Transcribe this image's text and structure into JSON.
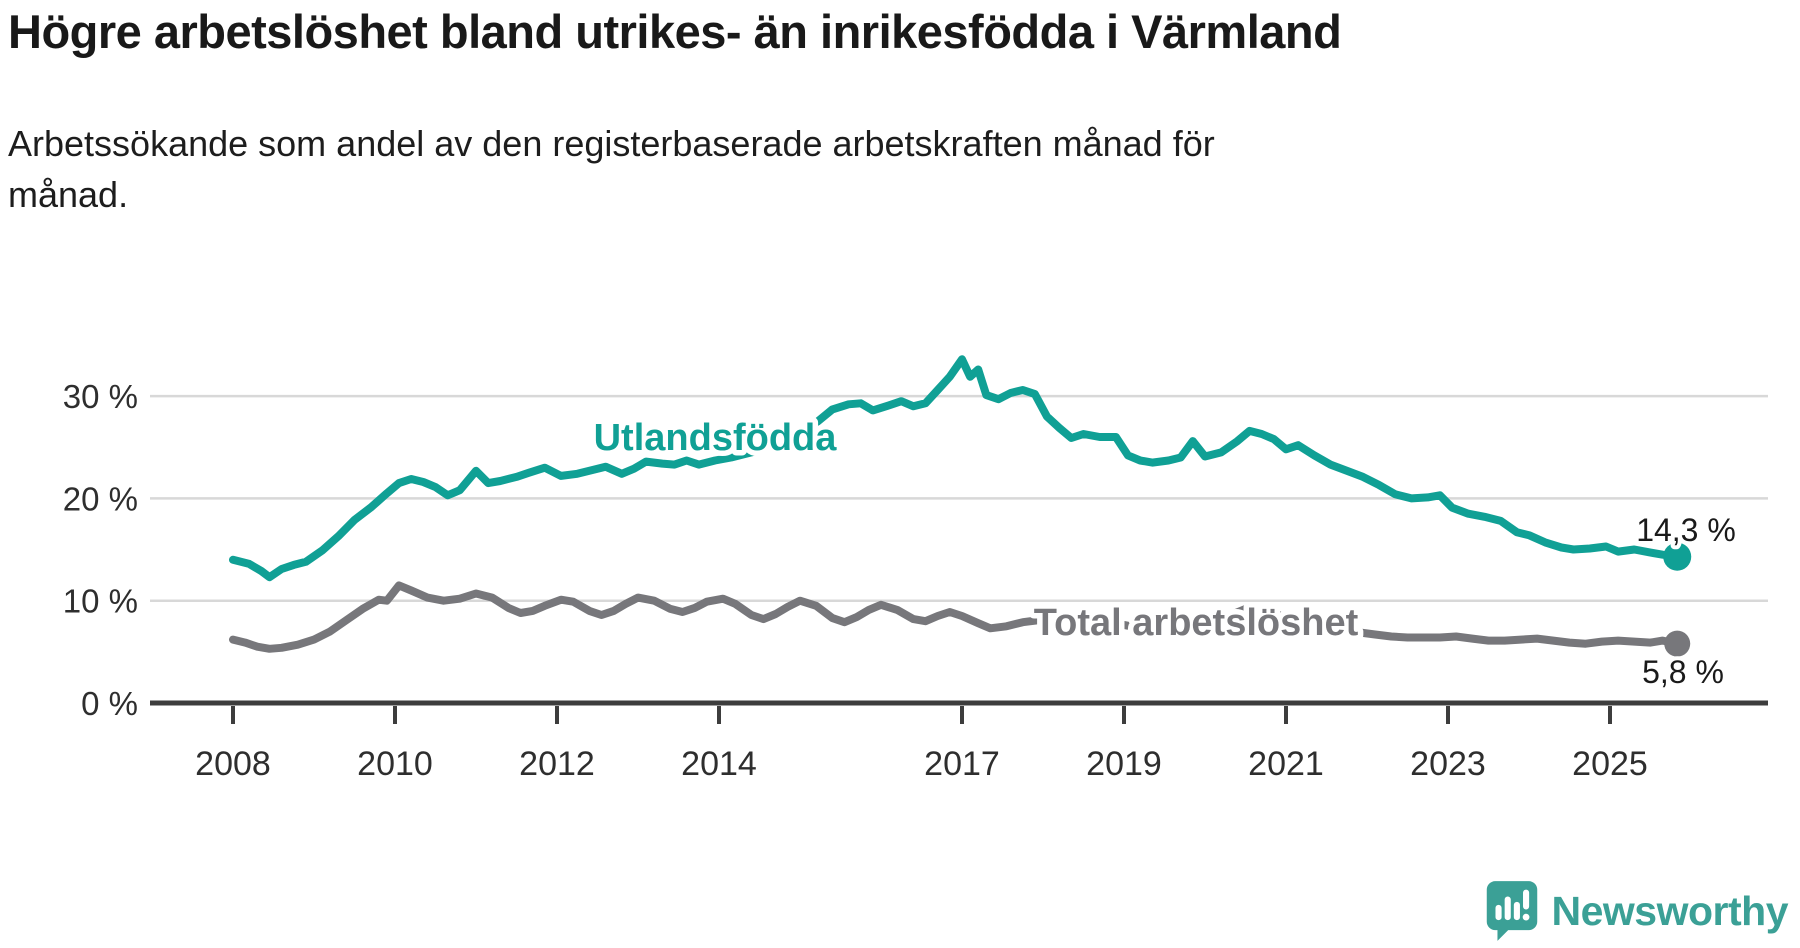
{
  "header": {
    "title": "Högre arbetslöshet bland utrikes- än inrikesfödda i Värmland",
    "subtitle_lines": [
      "Arbetssökande som andel av den registerbaserade arbetskraften månad för",
      "månad."
    ]
  },
  "footer": {
    "logo_text": "Newsworthy"
  },
  "colors": {
    "accent_teal": "#10a095",
    "series_gray": "#77777b",
    "gridline": "#d8d8d8",
    "axis": "#3d3d3d",
    "tick_text": "#2e2e2e",
    "value_label_text": "#1a1a1a",
    "logo_teal": "#3ba096"
  },
  "chart_data": {
    "type": "line",
    "title": "Högre arbetslöshet bland utrikes- än inrikesfödda i Värmland",
    "subtitle": "Arbetssökande som andel av den registerbaserade arbetskraften månad för månad.",
    "x_axis": {
      "ticks": [
        2008,
        2010,
        2012,
        2014,
        2017,
        2019,
        2021,
        2023,
        2025
      ],
      "range": [
        2007.9,
        2026.0
      ],
      "label": ""
    },
    "y_axis": {
      "ticks": [
        0,
        10,
        20,
        30
      ],
      "tick_suffix": " %",
      "range": [
        0,
        34
      ],
      "gridlines": true,
      "label": ""
    },
    "legend_position": "inline-labels",
    "series": [
      {
        "name": "Utlandsfödda",
        "color": "#10a095",
        "end_label": "14,3 %",
        "end_value": 14.3,
        "points": [
          [
            2008.0,
            14.0
          ],
          [
            2008.2,
            13.6
          ],
          [
            2008.35,
            12.9
          ],
          [
            2008.45,
            12.3
          ],
          [
            2008.6,
            13.1
          ],
          [
            2008.75,
            13.5
          ],
          [
            2008.9,
            13.8
          ],
          [
            2009.1,
            14.9
          ],
          [
            2009.3,
            16.3
          ],
          [
            2009.5,
            17.9
          ],
          [
            2009.7,
            19.1
          ],
          [
            2009.9,
            20.5
          ],
          [
            2010.05,
            21.5
          ],
          [
            2010.2,
            21.9
          ],
          [
            2010.35,
            21.6
          ],
          [
            2010.5,
            21.1
          ],
          [
            2010.65,
            20.3
          ],
          [
            2010.8,
            20.8
          ],
          [
            2011.0,
            22.7
          ],
          [
            2011.15,
            21.5
          ],
          [
            2011.3,
            21.7
          ],
          [
            2011.5,
            22.1
          ],
          [
            2011.65,
            22.5
          ],
          [
            2011.85,
            23.0
          ],
          [
            2012.05,
            22.2
          ],
          [
            2012.25,
            22.4
          ],
          [
            2012.45,
            22.8
          ],
          [
            2012.6,
            23.1
          ],
          [
            2012.8,
            22.4
          ],
          [
            2012.95,
            22.9
          ],
          [
            2013.1,
            23.6
          ],
          [
            2013.3,
            23.4
          ],
          [
            2013.45,
            23.3
          ],
          [
            2013.6,
            23.7
          ],
          [
            2013.75,
            23.3
          ],
          [
            2013.95,
            23.7
          ],
          [
            2014.15,
            24.0
          ],
          [
            2014.4,
            24.5
          ],
          [
            2014.6,
            25.0
          ],
          [
            2014.8,
            25.8
          ],
          [
            2015.0,
            26.7
          ],
          [
            2015.2,
            27.4
          ],
          [
            2015.4,
            28.7
          ],
          [
            2015.6,
            29.2
          ],
          [
            2015.75,
            29.3
          ],
          [
            2015.9,
            28.6
          ],
          [
            2016.1,
            29.1
          ],
          [
            2016.25,
            29.5
          ],
          [
            2016.4,
            29.0
          ],
          [
            2016.55,
            29.3
          ],
          [
            2016.7,
            30.6
          ],
          [
            2016.85,
            31.9
          ],
          [
            2017.0,
            33.6
          ],
          [
            2017.1,
            31.9
          ],
          [
            2017.2,
            32.6
          ],
          [
            2017.3,
            30.1
          ],
          [
            2017.45,
            29.7
          ],
          [
            2017.6,
            30.3
          ],
          [
            2017.75,
            30.6
          ],
          [
            2017.9,
            30.2
          ],
          [
            2018.05,
            28.0
          ],
          [
            2018.2,
            26.9
          ],
          [
            2018.35,
            25.9
          ],
          [
            2018.5,
            26.3
          ],
          [
            2018.7,
            26.0
          ],
          [
            2018.9,
            26.0
          ],
          [
            2019.05,
            24.2
          ],
          [
            2019.2,
            23.7
          ],
          [
            2019.35,
            23.5
          ],
          [
            2019.55,
            23.7
          ],
          [
            2019.7,
            24.0
          ],
          [
            2019.85,
            25.6
          ],
          [
            2020.0,
            24.1
          ],
          [
            2020.2,
            24.5
          ],
          [
            2020.4,
            25.6
          ],
          [
            2020.55,
            26.6
          ],
          [
            2020.7,
            26.3
          ],
          [
            2020.85,
            25.8
          ],
          [
            2021.0,
            24.8
          ],
          [
            2021.15,
            25.2
          ],
          [
            2021.35,
            24.2
          ],
          [
            2021.55,
            23.3
          ],
          [
            2021.75,
            22.7
          ],
          [
            2021.95,
            22.1
          ],
          [
            2022.15,
            21.3
          ],
          [
            2022.35,
            20.4
          ],
          [
            2022.55,
            20.0
          ],
          [
            2022.75,
            20.1
          ],
          [
            2022.9,
            20.3
          ],
          [
            2023.05,
            19.1
          ],
          [
            2023.25,
            18.5
          ],
          [
            2023.45,
            18.2
          ],
          [
            2023.65,
            17.8
          ],
          [
            2023.85,
            16.7
          ],
          [
            2024.0,
            16.4
          ],
          [
            2024.2,
            15.7
          ],
          [
            2024.4,
            15.2
          ],
          [
            2024.55,
            15.0
          ],
          [
            2024.75,
            15.1
          ],
          [
            2024.95,
            15.3
          ],
          [
            2025.1,
            14.8
          ],
          [
            2025.3,
            15.0
          ],
          [
            2025.5,
            14.7
          ],
          [
            2025.65,
            14.5
          ],
          [
            2025.83,
            14.3
          ]
        ]
      },
      {
        "name": "Total arbetslöshet",
        "color": "#77777b",
        "end_label": "5,8 %",
        "end_value": 5.8,
        "points": [
          [
            2008.0,
            6.2
          ],
          [
            2008.15,
            5.9
          ],
          [
            2008.3,
            5.5
          ],
          [
            2008.45,
            5.3
          ],
          [
            2008.6,
            5.4
          ],
          [
            2008.8,
            5.7
          ],
          [
            2009.0,
            6.2
          ],
          [
            2009.2,
            7.0
          ],
          [
            2009.4,
            8.1
          ],
          [
            2009.6,
            9.2
          ],
          [
            2009.8,
            10.1
          ],
          [
            2009.9,
            10.0
          ],
          [
            2010.05,
            11.5
          ],
          [
            2010.2,
            11.0
          ],
          [
            2010.4,
            10.3
          ],
          [
            2010.6,
            10.0
          ],
          [
            2010.8,
            10.2
          ],
          [
            2011.0,
            10.7
          ],
          [
            2011.2,
            10.3
          ],
          [
            2011.4,
            9.3
          ],
          [
            2011.55,
            8.8
          ],
          [
            2011.7,
            9.0
          ],
          [
            2011.85,
            9.5
          ],
          [
            2012.05,
            10.1
          ],
          [
            2012.2,
            9.9
          ],
          [
            2012.4,
            9.0
          ],
          [
            2012.55,
            8.6
          ],
          [
            2012.7,
            9.0
          ],
          [
            2012.85,
            9.7
          ],
          [
            2013.0,
            10.3
          ],
          [
            2013.2,
            10.0
          ],
          [
            2013.4,
            9.2
          ],
          [
            2013.55,
            8.9
          ],
          [
            2013.7,
            9.3
          ],
          [
            2013.85,
            9.9
          ],
          [
            2014.05,
            10.2
          ],
          [
            2014.2,
            9.7
          ],
          [
            2014.4,
            8.6
          ],
          [
            2014.55,
            8.2
          ],
          [
            2014.7,
            8.7
          ],
          [
            2014.85,
            9.4
          ],
          [
            2015.0,
            10.0
          ],
          [
            2015.2,
            9.5
          ],
          [
            2015.4,
            8.3
          ],
          [
            2015.55,
            7.9
          ],
          [
            2015.7,
            8.4
          ],
          [
            2015.85,
            9.1
          ],
          [
            2016.0,
            9.6
          ],
          [
            2016.2,
            9.1
          ],
          [
            2016.4,
            8.2
          ],
          [
            2016.55,
            8.0
          ],
          [
            2016.7,
            8.5
          ],
          [
            2016.85,
            8.9
          ],
          [
            2017.0,
            8.5
          ],
          [
            2017.2,
            7.8
          ],
          [
            2017.35,
            7.3
          ],
          [
            2017.55,
            7.5
          ],
          [
            2017.75,
            7.9
          ],
          [
            2017.95,
            8.1
          ],
          [
            2018.15,
            7.8
          ],
          [
            2018.35,
            7.3
          ],
          [
            2018.55,
            7.2
          ],
          [
            2018.75,
            7.5
          ],
          [
            2018.95,
            7.7
          ],
          [
            2019.15,
            7.4
          ],
          [
            2019.35,
            7.1
          ],
          [
            2019.55,
            7.0
          ],
          [
            2019.75,
            7.3
          ],
          [
            2019.95,
            7.6
          ],
          [
            2020.15,
            7.9
          ],
          [
            2020.35,
            8.7
          ],
          [
            2020.5,
            9.2
          ],
          [
            2020.7,
            8.9
          ],
          [
            2020.9,
            8.6
          ],
          [
            2021.1,
            8.3
          ],
          [
            2021.3,
            7.8
          ],
          [
            2021.5,
            7.4
          ],
          [
            2021.7,
            7.1
          ],
          [
            2021.9,
            6.9
          ],
          [
            2022.1,
            6.7
          ],
          [
            2022.3,
            6.5
          ],
          [
            2022.5,
            6.4
          ],
          [
            2022.7,
            6.4
          ],
          [
            2022.9,
            6.4
          ],
          [
            2023.1,
            6.5
          ],
          [
            2023.3,
            6.3
          ],
          [
            2023.5,
            6.1
          ],
          [
            2023.7,
            6.1
          ],
          [
            2023.9,
            6.2
          ],
          [
            2024.1,
            6.3
          ],
          [
            2024.3,
            6.1
          ],
          [
            2024.5,
            5.9
          ],
          [
            2024.7,
            5.8
          ],
          [
            2024.9,
            6.0
          ],
          [
            2025.1,
            6.1
          ],
          [
            2025.3,
            6.0
          ],
          [
            2025.5,
            5.9
          ],
          [
            2025.65,
            6.1
          ],
          [
            2025.83,
            5.8
          ]
        ]
      }
    ]
  }
}
